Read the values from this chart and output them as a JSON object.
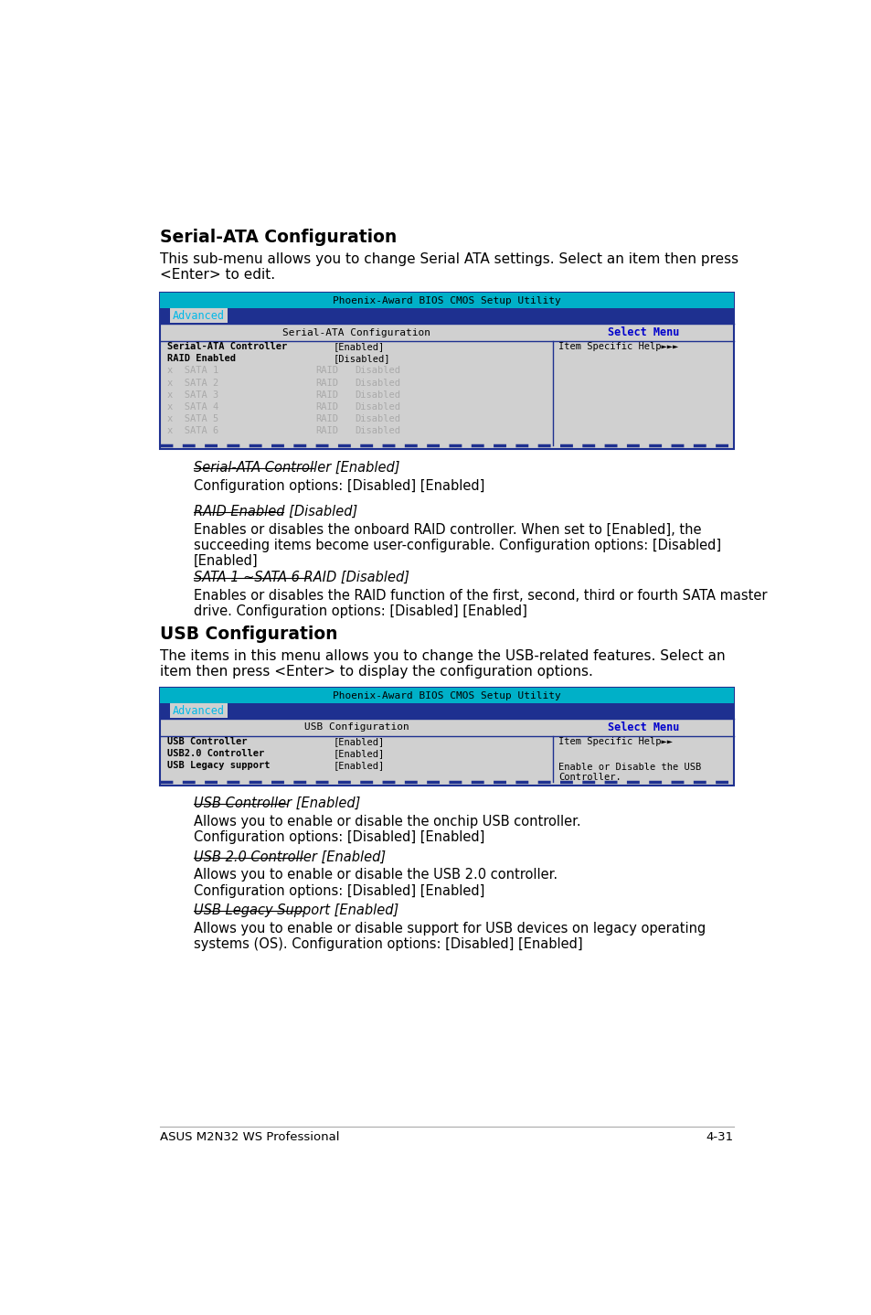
{
  "bg_color": "#ffffff",
  "bios_title": "Phoenix-Award BIOS CMOS Setup Utility",
  "bios_bg": "#00b0c8",
  "tab_bg": "#1e3090",
  "tab_text": "Advanced",
  "tab_text_color": "#00b8e8",
  "panel_bg": "#d0d0d0",
  "panel_border": "#1e3090",
  "right_panel_title_color": "#0000cc",
  "section1_title": "Serial-ATA Configuration",
  "section1_intro": "This sub-menu allows you to change Serial ATA settings. Select an item then press\n<Enter> to edit.",
  "left_panel_title1": "Serial-ATA Configuration",
  "right_panel_title": "Select Menu",
  "sata_rows": [
    {
      "left": "Serial-ATA Controller",
      "mid": "[Enabled]",
      "right": "Item Specific Help►►►",
      "gray": false
    },
    {
      "left": "RAID Enabled",
      "mid": "[Disabled]",
      "right": "",
      "gray": false
    },
    {
      "left": "x  SATA 1",
      "mid2a": "RAID",
      "mid2b": "Disabled",
      "right": "",
      "gray": true
    },
    {
      "left": "x  SATA 2",
      "mid2a": "RAID",
      "mid2b": "Disabled",
      "right": "",
      "gray": true
    },
    {
      "left": "x  SATA 3",
      "mid2a": "RAID",
      "mid2b": "Disabled",
      "right": "",
      "gray": true
    },
    {
      "left": "x  SATA 4",
      "mid2a": "RAID",
      "mid2b": "Disabled",
      "right": "",
      "gray": true
    },
    {
      "left": "x  SATA 5",
      "mid2a": "RAID",
      "mid2b": "Disabled",
      "right": "",
      "gray": true
    },
    {
      "left": "x  SATA 6",
      "mid2a": "RAID",
      "mid2b": "Disabled",
      "right": "",
      "gray": true
    }
  ],
  "desc1_heading": "Serial-ATA Controller [Enabled]",
  "desc1_body": "Configuration options: [Disabled] [Enabled]",
  "desc2_heading": "RAID Enabled [Disabled]",
  "desc2_body": "Enables or disables the onboard RAID controller. When set to [Enabled], the\nsucceeding items become user-configurable. Configuration options: [Disabled]\n[Enabled]",
  "desc3_heading": "SATA 1 ~SATA 6 RAID [Disabled]",
  "desc3_body": "Enables or disables the RAID function of the first, second, third or fourth SATA master\ndrive. Configuration options: [Disabled] [Enabled]",
  "section2_title": "USB Configuration",
  "section2_intro": "The items in this menu allows you to change the USB-related features. Select an\nitem then press <Enter> to display the configuration options.",
  "left_panel_title2": "USB Configuration",
  "usb_rows": [
    {
      "left": "USB Controller",
      "mid": "[Enabled]",
      "right": "Item Specific Help►►",
      "gray": false
    },
    {
      "left": "USB2.0 Controller",
      "mid": "[Enabled]",
      "right": "",
      "gray": false
    },
    {
      "left": "USB Legacy support",
      "mid": "[Enabled]",
      "right": "",
      "gray": false
    }
  ],
  "usb_right_extra": "Enable or Disable the USB\nController.",
  "desc4_heading": "USB Controller [Enabled]",
  "desc4_body": "Allows you to enable or disable the onchip USB controller.\nConfiguration options: [Disabled] [Enabled]",
  "desc5_heading": "USB 2.0 Controller [Enabled]",
  "desc5_body": "Allows you to enable or disable the USB 2.0 controller.\nConfiguration options: [Disabled] [Enabled]",
  "desc6_heading": "USB Legacy Support [Enabled]",
  "desc6_body": "Allows you to enable or disable support for USB devices on legacy operating\nsystems (OS). Configuration options: [Disabled] [Enabled]",
  "footer_left": "ASUS M2N32 WS Professional",
  "footer_right": "4-31"
}
